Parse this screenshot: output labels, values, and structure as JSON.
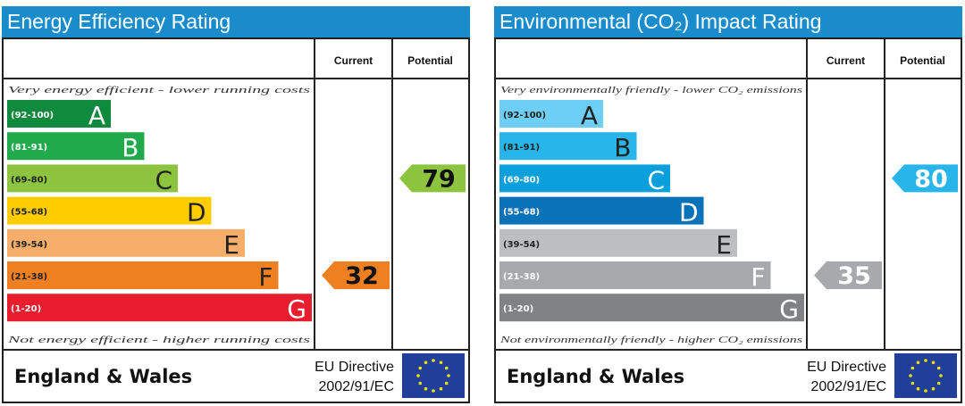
{
  "chart_data": [
    {
      "type": "bar",
      "title": "Energy Efficiency Rating",
      "title_color": "#1a8ccc",
      "columns": [
        "Current",
        "Potential"
      ],
      "top_note": "Very energy efficient - lower running costs",
      "bottom_note": "Not energy efficient - higher running costs",
      "bands": [
        {
          "range": "(92-100)",
          "letter": "A",
          "color": "#108a3c",
          "text_color": "#ffffff"
        },
        {
          "range": "(81-91)",
          "letter": "B",
          "color": "#21aa4c",
          "text_color": "#ffffff"
        },
        {
          "range": "(69-80)",
          "letter": "C",
          "color": "#8cc43f",
          "text_color": "#222222"
        },
        {
          "range": "(55-68)",
          "letter": "D",
          "color": "#ffcc00",
          "text_color": "#222222"
        },
        {
          "range": "(39-54)",
          "letter": "E",
          "color": "#f7ae6a",
          "text_color": "#222222"
        },
        {
          "range": "(21-38)",
          "letter": "F",
          "color": "#ef8021",
          "text_color": "#222222"
        },
        {
          "range": "(1-20)",
          "letter": "G",
          "color": "#e81d2d",
          "text_color": "#ffffff"
        }
      ],
      "current": {
        "value": 32,
        "band": "F",
        "color": "#ef8021"
      },
      "potential": {
        "value": 79,
        "band": "C",
        "color": "#8cc43f"
      },
      "footer": {
        "region": "England & Wales",
        "directive_line1": "EU Directive",
        "directive_line2": "2002/91/EC"
      }
    },
    {
      "type": "bar",
      "title": "Environmental (CO₂) Impact Rating",
      "title_color": "#1a8ccc",
      "columns": [
        "Current",
        "Potential"
      ],
      "top_note": "Very environmentally friendly - lower CO₂ emissions",
      "bottom_note": "Not environmentally friendly - higher CO₂ emissions",
      "bands": [
        {
          "range": "(92-100)",
          "letter": "A",
          "color": "#6ecff6",
          "text_color": "#222222"
        },
        {
          "range": "(81-91)",
          "letter": "B",
          "color": "#27b5ea",
          "text_color": "#222222"
        },
        {
          "range": "(69-80)",
          "letter": "C",
          "color": "#0b9fdc",
          "text_color": "#ffffff"
        },
        {
          "range": "(55-68)",
          "letter": "D",
          "color": "#0a72b8",
          "text_color": "#ffffff"
        },
        {
          "range": "(39-54)",
          "letter": "E",
          "color": "#bcbec0",
          "text_color": "#222222"
        },
        {
          "range": "(21-38)",
          "letter": "F",
          "color": "#a7a9ac",
          "text_color": "#ffffff"
        },
        {
          "range": "(1-20)",
          "letter": "G",
          "color": "#808285",
          "text_color": "#ffffff"
        }
      ],
      "current": {
        "value": 35,
        "band": "F",
        "color": "#a7a9ac"
      },
      "potential": {
        "value": 80,
        "band": "C",
        "color": "#27b5ea"
      },
      "footer": {
        "region": "England & Wales",
        "directive_line1": "EU Directive",
        "directive_line2": "2002/91/EC"
      }
    }
  ],
  "eu_flag_color": "#1f3f9a",
  "eu_star_color": "#ffdd00"
}
